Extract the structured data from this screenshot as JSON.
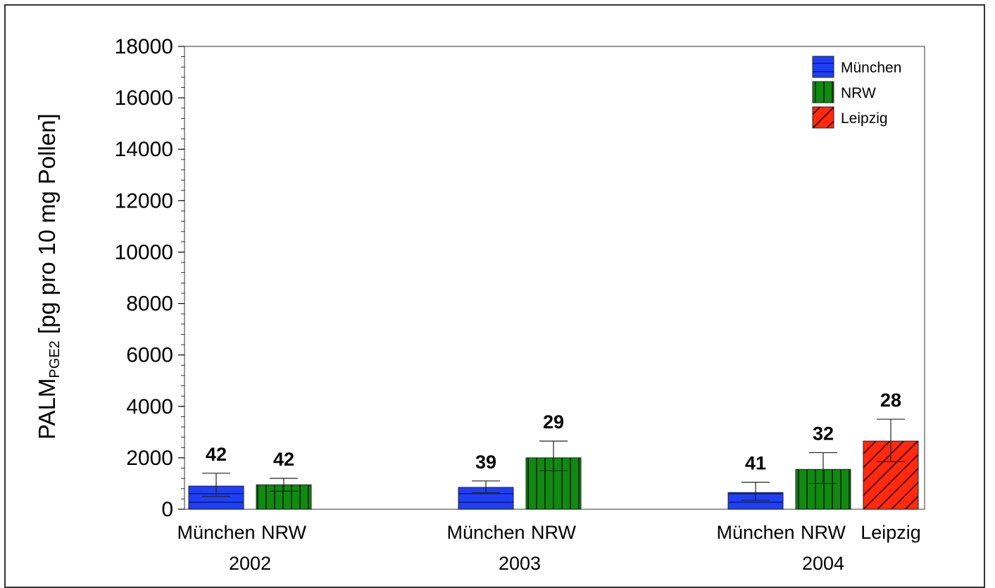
{
  "chart_data": {
    "type": "bar",
    "ylabel_main": "PALM",
    "ylabel_sub": "PGE2",
    "ylabel_rest": " [pg pro 10 mg Pollen]",
    "ylim": [
      0,
      18000
    ],
    "yticks": [
      "0",
      "2000",
      "4000",
      "6000",
      "8000",
      "10000",
      "12000",
      "14000",
      "16000",
      "18000"
    ],
    "grid": false,
    "legend_position": "top-right",
    "series_styles": {
      "München": {
        "color": "#1f3ff5",
        "pattern": "horizontal-lines"
      },
      "NRW": {
        "color": "#108a10",
        "pattern": "vertical-lines"
      },
      "Leipzig": {
        "color": "#ff2a10",
        "pattern": "diagonal-lines"
      }
    },
    "legend": [
      "München",
      "NRW",
      "Leipzig"
    ],
    "groups": [
      {
        "year": "2002",
        "bars": [
          {
            "series": "München",
            "label": "München",
            "value": 900,
            "err_low": 500,
            "err_high": 1400,
            "n": "42"
          },
          {
            "series": "NRW",
            "label": "NRW",
            "value": 950,
            "err_low": 700,
            "err_high": 1200,
            "n": "42"
          }
        ]
      },
      {
        "year": "2003",
        "bars": [
          {
            "series": "München",
            "label": "München",
            "value": 850,
            "err_low": 650,
            "err_high": 1100,
            "n": "39"
          },
          {
            "series": "NRW",
            "label": "NRW",
            "value": 2000,
            "err_low": 1500,
            "err_high": 2650,
            "n": "29"
          }
        ]
      },
      {
        "year": "2004",
        "bars": [
          {
            "series": "München",
            "label": "München",
            "value": 650,
            "err_low": 350,
            "err_high": 1050,
            "n": "41"
          },
          {
            "series": "NRW",
            "label": "NRW",
            "value": 1550,
            "err_low": 1000,
            "err_high": 2200,
            "n": "32"
          },
          {
            "series": "Leipzig",
            "label": "Leipzig",
            "value": 2650,
            "err_low": 1850,
            "err_high": 3500,
            "n": "28"
          }
        ]
      }
    ]
  }
}
